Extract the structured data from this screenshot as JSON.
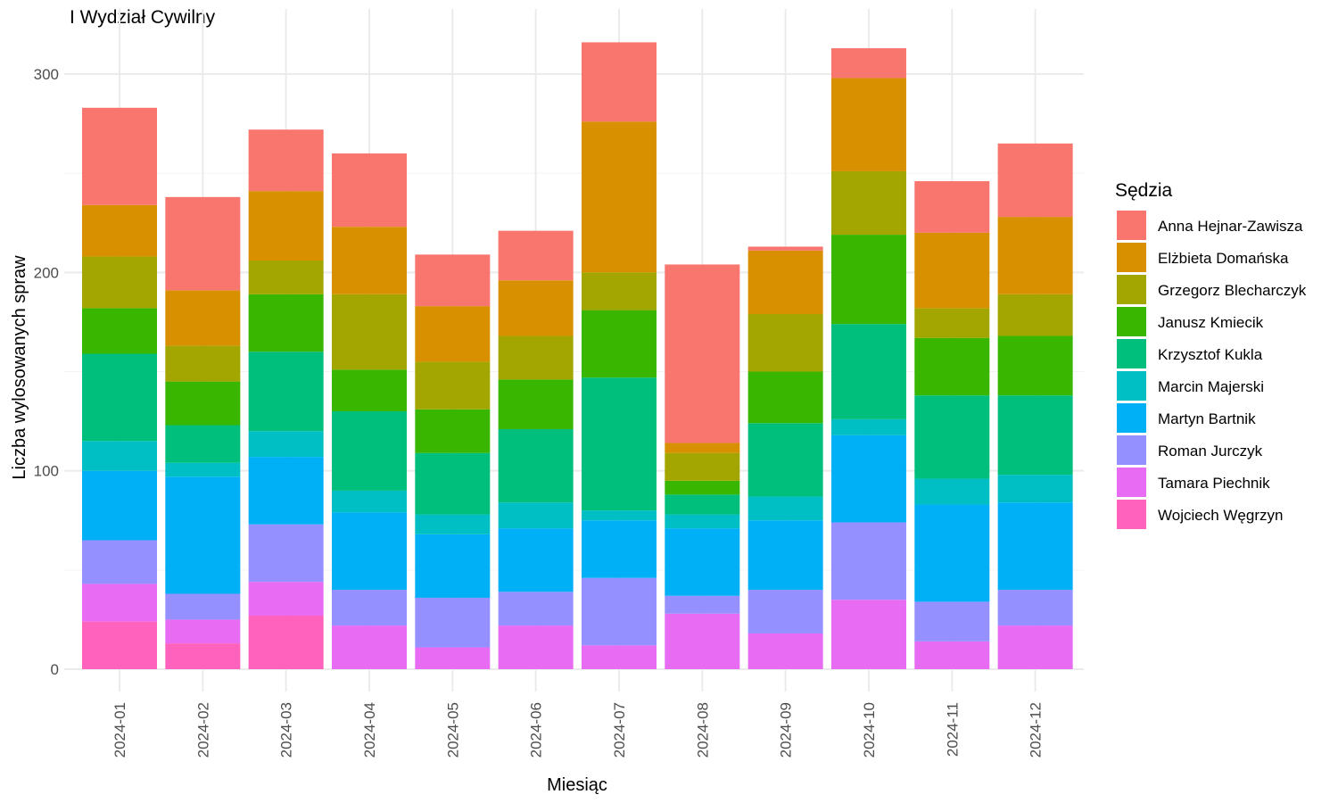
{
  "chart_data": {
    "type": "bar",
    "stacked": true,
    "title": "I Wydział Cywilny",
    "xlabel": "Miesiąc",
    "ylabel": "Liczba wylosowanych spraw",
    "ylim": [
      0,
      330
    ],
    "yticks": [
      0,
      100,
      200,
      300
    ],
    "grid": true,
    "legend_title": "Sędzia",
    "legend_position": "right",
    "categories": [
      "2024-01",
      "2024-02",
      "2024-03",
      "2024-04",
      "2024-05",
      "2024-06",
      "2024-07",
      "2024-08",
      "2024-09",
      "2024-10",
      "2024-11",
      "2024-12"
    ],
    "series": [
      {
        "name": "Anna Hejnar-Zawisza",
        "color": "#F8766D",
        "values": [
          49,
          47,
          31,
          37,
          26,
          25,
          40,
          90,
          2,
          15,
          26,
          37
        ]
      },
      {
        "name": "Elżbieta Domańska",
        "color": "#D89000",
        "values": [
          26,
          28,
          35,
          34,
          28,
          28,
          76,
          5,
          32,
          47,
          38,
          39
        ]
      },
      {
        "name": "Grzegorz Blecharczyk",
        "color": "#A3A500",
        "values": [
          26,
          18,
          17,
          38,
          24,
          22,
          19,
          14,
          29,
          32,
          15,
          21
        ]
      },
      {
        "name": "Janusz Kmiecik",
        "color": "#39B600",
        "values": [
          23,
          22,
          29,
          21,
          22,
          25,
          34,
          7,
          26,
          45,
          29,
          30
        ]
      },
      {
        "name": "Krzysztof Kukla",
        "color": "#00BF7D",
        "values": [
          44,
          19,
          40,
          40,
          31,
          37,
          67,
          10,
          37,
          48,
          42,
          40
        ]
      },
      {
        "name": "Marcin Majerski",
        "color": "#00BFC4",
        "values": [
          15,
          7,
          13,
          11,
          10,
          13,
          5,
          7,
          12,
          8,
          13,
          14
        ]
      },
      {
        "name": "Martyn Bartnik",
        "color": "#00B0F6",
        "values": [
          35,
          59,
          34,
          39,
          32,
          32,
          29,
          34,
          35,
          44,
          49,
          44
        ]
      },
      {
        "name": "Roman Jurczyk",
        "color": "#9590FF",
        "values": [
          22,
          13,
          29,
          18,
          25,
          17,
          34,
          9,
          22,
          39,
          20,
          18
        ]
      },
      {
        "name": "Tamara Piechnik",
        "color": "#E76BF3",
        "values": [
          19,
          12,
          17,
          22,
          11,
          22,
          12,
          28,
          18,
          35,
          14,
          22
        ]
      },
      {
        "name": "Wojciech Węgrzyn",
        "color": "#FF62BC",
        "values": [
          24,
          13,
          27,
          0,
          0,
          0,
          0,
          0,
          0,
          0,
          0,
          0
        ]
      }
    ]
  }
}
